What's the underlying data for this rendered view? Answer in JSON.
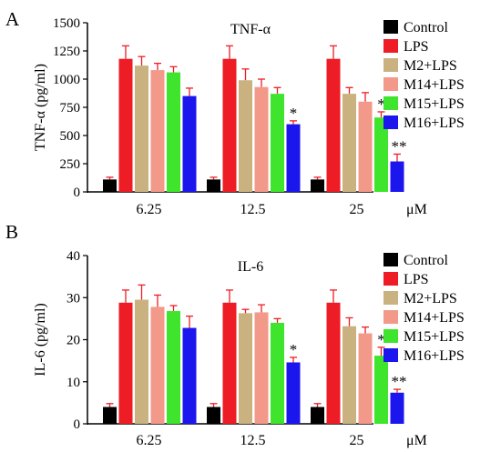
{
  "colors": {
    "Control": "#000000",
    "LPS": "#ee1c24",
    "M2+LPS": "#c9b280",
    "M14+LPS": "#f2998a",
    "M15+LPS": "#3ee52c",
    "M16+LPS": "#1c16ee",
    "error_bar": "#ee1c24"
  },
  "legend_labels": [
    "Control",
    "LPS",
    "M2+LPS",
    "M14+LPS",
    "M15+LPS",
    "M16+LPS"
  ],
  "chart_data": [
    {
      "panel": "A",
      "type": "bar",
      "title": "TNF-α",
      "xlabel": "",
      "unit": "μM",
      "ylabel": "TNF-α (pg/ml)",
      "ylim": [
        0,
        1500
      ],
      "yticks": [
        0,
        250,
        500,
        750,
        1000,
        1250,
        1500
      ],
      "categories": [
        "6.25",
        "12.5",
        "25"
      ],
      "series": [
        {
          "name": "Control",
          "values": [
            110,
            110,
            110
          ],
          "errors": [
            20,
            20,
            20
          ]
        },
        {
          "name": "LPS",
          "values": [
            1180,
            1180,
            1180
          ],
          "errors": [
            115,
            115,
            115
          ]
        },
        {
          "name": "M2+LPS",
          "values": [
            1120,
            990,
            870
          ],
          "errors": [
            80,
            100,
            55
          ]
        },
        {
          "name": "M14+LPS",
          "values": [
            1080,
            930,
            800
          ],
          "errors": [
            60,
            70,
            80
          ]
        },
        {
          "name": "M15+LPS",
          "values": [
            1060,
            870,
            660
          ],
          "errors": [
            50,
            55,
            50
          ]
        },
        {
          "name": "M16+LPS",
          "values": [
            850,
            600,
            270
          ],
          "errors": [
            70,
            30,
            65
          ]
        }
      ],
      "annotations": [
        {
          "category": "12.5",
          "series": "M16+LPS",
          "text": "*"
        },
        {
          "category": "25",
          "series": "M15+LPS",
          "text": "*"
        },
        {
          "category": "25",
          "series": "M16+LPS",
          "text": "**"
        }
      ]
    },
    {
      "panel": "B",
      "type": "bar",
      "title": "IL-6",
      "xlabel": "",
      "unit": "μM",
      "ylabel": "IL-6 (pg/ml)",
      "ylim": [
        0,
        40
      ],
      "yticks": [
        0,
        10,
        20,
        30,
        40
      ],
      "categories": [
        "6.25",
        "12.5",
        "25"
      ],
      "series": [
        {
          "name": "Control",
          "values": [
            4.0,
            4.0,
            4.0
          ],
          "errors": [
            0.8,
            0.8,
            0.8
          ]
        },
        {
          "name": "LPS",
          "values": [
            28.8,
            28.8,
            28.8
          ],
          "errors": [
            3.0,
            3.0,
            3.0
          ]
        },
        {
          "name": "M2+LPS",
          "values": [
            29.5,
            26.3,
            23.2
          ],
          "errors": [
            3.5,
            0.9,
            2.0
          ]
        },
        {
          "name": "M14+LPS",
          "values": [
            27.8,
            26.5,
            21.5
          ],
          "errors": [
            2.8,
            1.8,
            1.5
          ]
        },
        {
          "name": "M15+LPS",
          "values": [
            26.8,
            24.0,
            16.2
          ],
          "errors": [
            1.3,
            1.0,
            2.0
          ]
        },
        {
          "name": "M16+LPS",
          "values": [
            22.8,
            14.6,
            7.4
          ],
          "errors": [
            2.8,
            1.2,
            0.8
          ]
        }
      ],
      "annotations": [
        {
          "category": "12.5",
          "series": "M16+LPS",
          "text": "*"
        },
        {
          "category": "25",
          "series": "M15+LPS",
          "text": "*"
        },
        {
          "category": "25",
          "series": "M16+LPS",
          "text": "**"
        }
      ]
    }
  ]
}
